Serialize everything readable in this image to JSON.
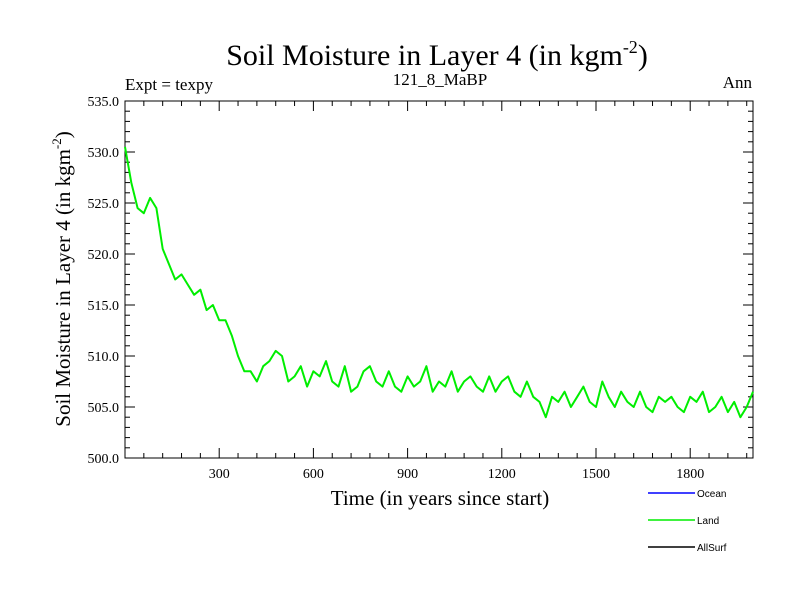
{
  "chart_data": {
    "type": "line",
    "title": "Soil Moisture in Layer 4 (in kgm",
    "title_sup": "-2",
    "title_close": ")",
    "left_label": "Expt = texpy",
    "center_label": "121_8_MaBP",
    "right_label": "Ann",
    "xlabel": "Time (in years since start)",
    "ylabel": "Soil Moisture in Layer 4 (in kgm",
    "ylabel_sup": "-2",
    "ylabel_close": ")",
    "xlim": [
      0,
      2000
    ],
    "ylim": [
      500.0,
      535.0
    ],
    "x_ticks": [
      300,
      600,
      900,
      1200,
      1500,
      1800
    ],
    "x_tick_labels": [
      "300",
      "600",
      "900",
      "1200",
      "1500",
      "1800"
    ],
    "y_ticks": [
      500,
      505,
      510,
      515,
      520,
      525,
      530,
      535
    ],
    "y_tick_labels": [
      "500.0",
      "505.0",
      "510.0",
      "515.0",
      "520.0",
      "525.0",
      "530.0",
      "535.0"
    ],
    "legend": [
      {
        "name": "Ocean",
        "color": "#0000ff"
      },
      {
        "name": "Land",
        "color": "#00ee00"
      },
      {
        "name": "AllSurf",
        "color": "#000000"
      }
    ],
    "series": [
      {
        "name": "Land",
        "color": "#00ee00",
        "x": [
          0,
          20,
          40,
          60,
          80,
          100,
          120,
          140,
          160,
          180,
          200,
          220,
          240,
          260,
          280,
          300,
          320,
          340,
          360,
          380,
          400,
          420,
          440,
          460,
          480,
          500,
          520,
          540,
          560,
          580,
          600,
          620,
          640,
          660,
          680,
          700,
          720,
          740,
          760,
          780,
          800,
          820,
          840,
          860,
          880,
          900,
          920,
          940,
          960,
          980,
          1000,
          1020,
          1040,
          1060,
          1080,
          1100,
          1120,
          1140,
          1160,
          1180,
          1200,
          1220,
          1240,
          1260,
          1280,
          1300,
          1320,
          1340,
          1360,
          1380,
          1400,
          1420,
          1440,
          1460,
          1480,
          1500,
          1520,
          1540,
          1560,
          1580,
          1600,
          1620,
          1640,
          1660,
          1680,
          1700,
          1720,
          1740,
          1760,
          1780,
          1800,
          1820,
          1840,
          1860,
          1880,
          1900,
          1920,
          1940,
          1960,
          1980,
          2000
        ],
        "values": [
          530.5,
          527.0,
          524.5,
          524.0,
          525.5,
          524.5,
          520.5,
          519.0,
          517.5,
          518.0,
          517.0,
          516.0,
          516.5,
          514.5,
          515.0,
          513.5,
          513.5,
          512.0,
          510.0,
          508.5,
          508.5,
          507.5,
          509.0,
          509.5,
          510.5,
          510.0,
          507.5,
          508.0,
          509.0,
          507.0,
          508.5,
          508.0,
          509.5,
          507.5,
          507.0,
          509.0,
          506.5,
          507.0,
          508.5,
          509.0,
          507.5,
          507.0,
          508.5,
          507.0,
          506.5,
          508.0,
          507.0,
          507.5,
          509.0,
          506.5,
          507.5,
          507.0,
          508.5,
          506.5,
          507.5,
          508.0,
          507.0,
          506.5,
          508.0,
          506.5,
          507.5,
          508.0,
          506.5,
          506.0,
          507.5,
          506.0,
          505.5,
          504.0,
          506.0,
          505.5,
          506.5,
          505.0,
          506.0,
          507.0,
          505.5,
          505.0,
          507.5,
          506.0,
          505.0,
          506.5,
          505.5,
          505.0,
          506.5,
          505.0,
          504.5,
          506.0,
          505.5,
          506.0,
          505.0,
          504.5,
          506.0,
          505.5,
          506.5,
          504.5,
          505.0,
          506.0,
          504.5,
          505.5,
          504.0,
          505.0,
          506.5
        ]
      }
    ]
  }
}
